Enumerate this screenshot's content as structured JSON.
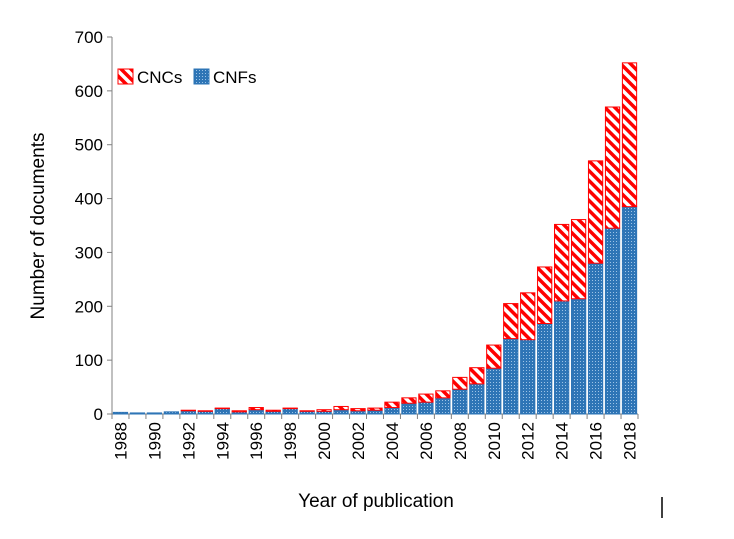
{
  "chart_data": {
    "type": "bar",
    "stacked": true,
    "x": [
      1988,
      1989,
      1990,
      1991,
      1992,
      1993,
      1994,
      1995,
      1996,
      1997,
      1998,
      1999,
      2000,
      2001,
      2002,
      2003,
      2004,
      2005,
      2006,
      2007,
      2008,
      2009,
      2010,
      2011,
      2012,
      2013,
      2014,
      2015,
      2016,
      2017,
      2018
    ],
    "tick_labels": [
      "1988",
      "1990",
      "1992",
      "1994",
      "1996",
      "1998",
      "2000",
      "2002",
      "2004",
      "2006",
      "2008",
      "2010",
      "2012",
      "2014",
      "2016",
      "2018"
    ],
    "y_ticks": [
      "0",
      "100",
      "200",
      "300",
      "400",
      "500",
      "600",
      "700"
    ],
    "series": [
      {
        "name": "CNFs",
        "color": "#2e75b6",
        "values": [
          3,
          2,
          2,
          4,
          6,
          5,
          10,
          4,
          8,
          5,
          10,
          5,
          5,
          8,
          6,
          7,
          12,
          20,
          22,
          30,
          46,
          56,
          85,
          140,
          138,
          168,
          210,
          214,
          280,
          345,
          385
        ]
      },
      {
        "name": "CNCs",
        "color": "#ff0000",
        "values": [
          0,
          0,
          0,
          0,
          1,
          1,
          1,
          2,
          4,
          2,
          1,
          1,
          3,
          6,
          4,
          4,
          10,
          10,
          15,
          13,
          22,
          30,
          43,
          65,
          87,
          105,
          142,
          147,
          190,
          225,
          267
        ]
      }
    ],
    "xlabel": "Year of publication",
    "ylabel": "Number of documents",
    "ylim": [
      0,
      700
    ],
    "grid": false,
    "legend_position": "top-left"
  }
}
